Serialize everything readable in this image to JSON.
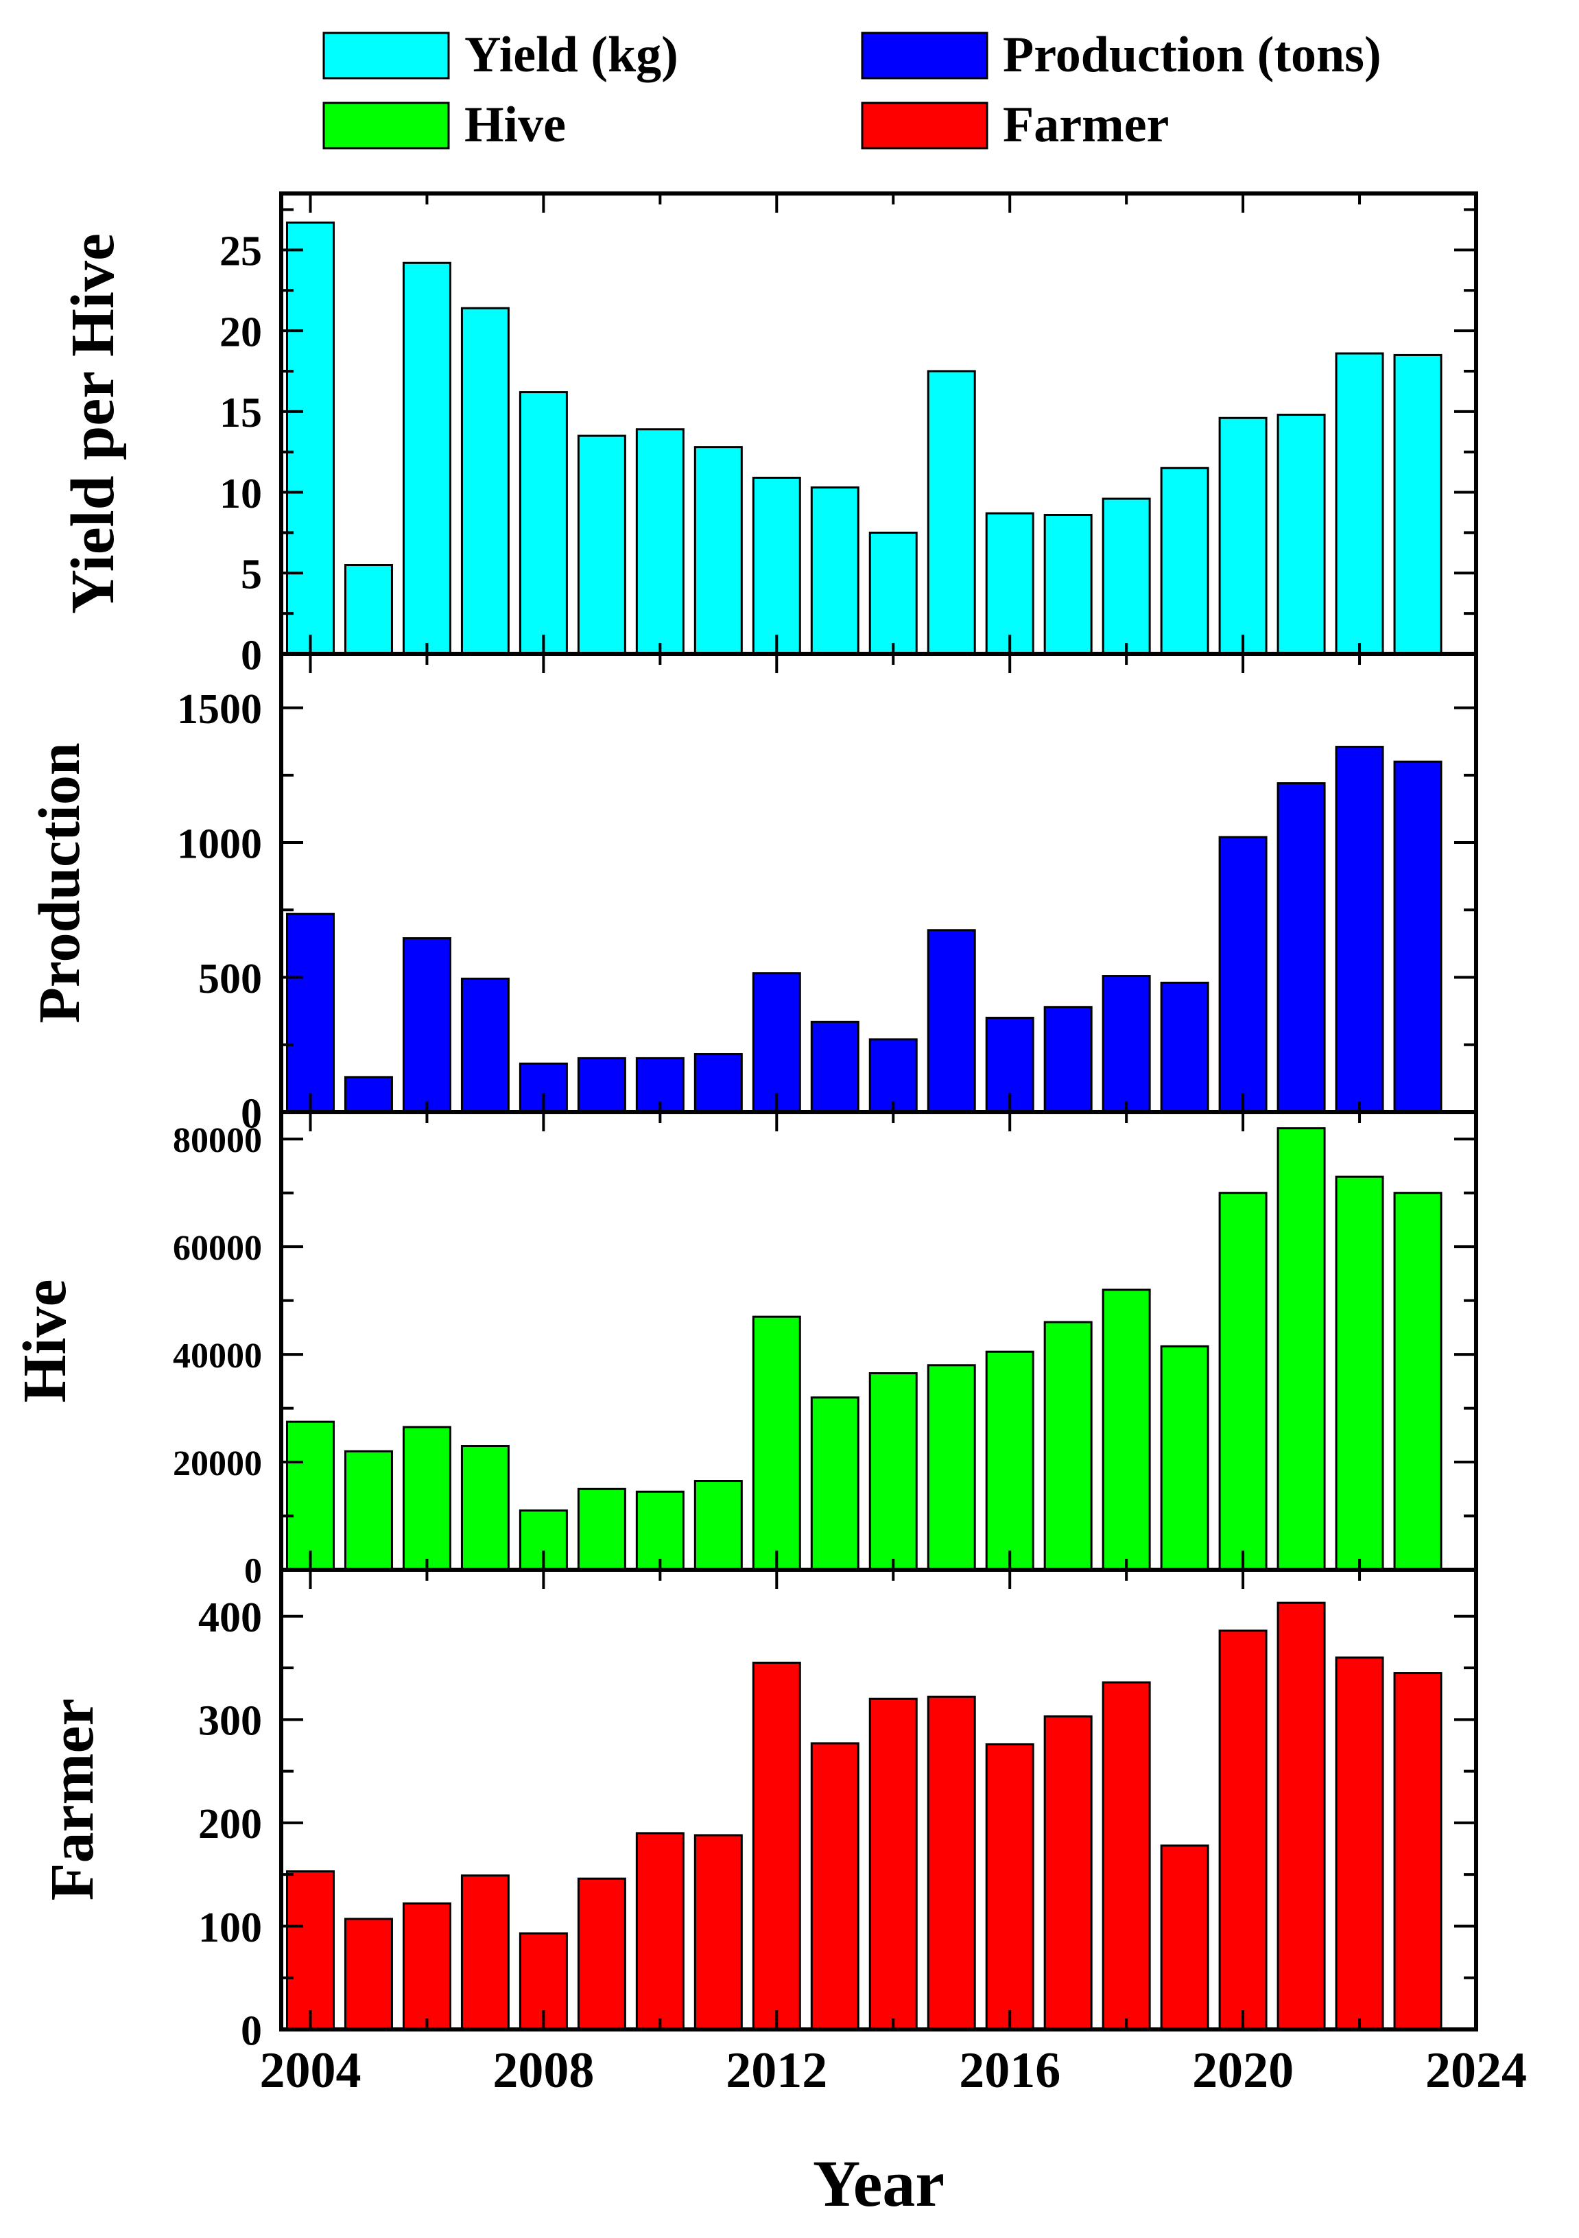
{
  "chart_data": {
    "type": "bar",
    "x": [
      2004,
      2005,
      2006,
      2007,
      2008,
      2009,
      2010,
      2011,
      2012,
      2013,
      2014,
      2015,
      2016,
      2017,
      2018,
      2019,
      2020,
      2021,
      2022,
      2023
    ],
    "xlabel": "Year",
    "xlim": [
      2003.5,
      2024
    ],
    "xticks": [
      "2004",
      "2008",
      "2012",
      "2016",
      "2020",
      "2024"
    ],
    "legend": {
      "placement": "top",
      "entries": [
        {
          "label": "Yield (kg)",
          "color": "#00FFFF"
        },
        {
          "label": "Production (tons)",
          "color": "#0000FF"
        },
        {
          "label": "Hive",
          "color": "#00FF00"
        },
        {
          "label": "Farmer",
          "color": "#FF0000"
        }
      ]
    },
    "panels": [
      {
        "name": "Yield (kg)",
        "ylabel": "Yield per Hive",
        "color": "#00FFFF",
        "ylim": [
          0,
          28.5
        ],
        "yticks": [
          "0",
          "5",
          "10",
          "15",
          "20",
          "25"
        ],
        "values": [
          26.7,
          5.5,
          24.2,
          21.4,
          16.2,
          13.5,
          13.9,
          12.8,
          10.9,
          10.3,
          7.5,
          17.5,
          8.7,
          8.6,
          9.6,
          11.5,
          14.6,
          14.8,
          18.6,
          18.5
        ]
      },
      {
        "name": "Production (tons)",
        "ylabel": "Production",
        "color": "#0000FF",
        "ylim": [
          0,
          1700
        ],
        "yticks": [
          "0",
          "500",
          "1000",
          "1500"
        ],
        "values": [
          735,
          130,
          645,
          495,
          180,
          200,
          200,
          215,
          515,
          335,
          270,
          675,
          350,
          390,
          505,
          480,
          1020,
          1220,
          1355,
          1300
        ]
      },
      {
        "name": "Hive",
        "ylabel": "Hive",
        "color": "#00FF00",
        "ylim": [
          0,
          85000
        ],
        "yticks": [
          "0",
          "20000",
          "40000",
          "60000",
          "80000"
        ],
        "values": [
          27500,
          22000,
          26500,
          23000,
          11000,
          15000,
          14500,
          16500,
          47000,
          32000,
          36500,
          38000,
          40500,
          46000,
          52000,
          41500,
          70000,
          82000,
          73000,
          70000
        ]
      },
      {
        "name": "Farmer",
        "ylabel": "Farmer",
        "color": "#FF0000",
        "ylim": [
          0,
          445
        ],
        "yticks": [
          "0",
          "100",
          "200",
          "300",
          "400"
        ],
        "values": [
          153,
          107,
          122,
          149,
          93,
          146,
          190,
          188,
          355,
          277,
          320,
          322,
          276,
          303,
          336,
          178,
          386,
          413,
          360,
          345
        ]
      }
    ]
  }
}
